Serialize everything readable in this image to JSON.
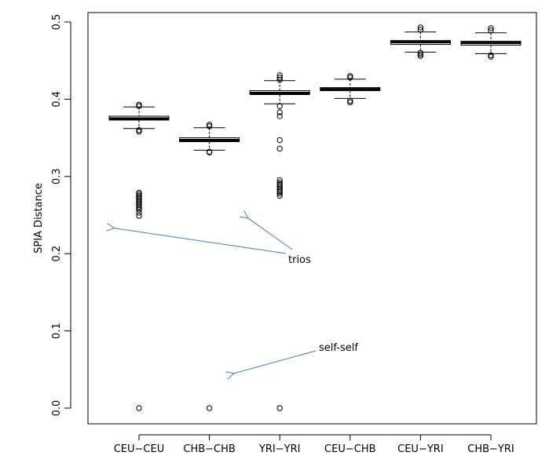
{
  "chart_data": {
    "type": "boxplot",
    "title": "",
    "xlabel": "",
    "ylabel": "SPIA Distance",
    "ylim": [
      -0.02,
      0.515
    ],
    "y_ticks": [
      0.0,
      0.1,
      0.2,
      0.3,
      0.4,
      0.5
    ],
    "y_tick_labels": [
      "0.0",
      "0.1",
      "0.2",
      "0.3",
      "0.4",
      "0.5"
    ],
    "categories": [
      "CEU−CEU",
      "CHB−CHB",
      "YRI−YRI",
      "CEU−CHB",
      "CEU−YRI",
      "CHB−YRI"
    ],
    "boxes": [
      {
        "q1": 0.373,
        "median": 0.375,
        "q3": 0.378,
        "whisker_low": 0.362,
        "whisker_high": 0.39,
        "outliers": [
          0.393,
          0.391,
          0.36,
          0.358,
          0.279,
          0.277,
          0.275,
          0.273,
          0.271,
          0.269,
          0.267,
          0.265,
          0.263,
          0.261,
          0.259,
          0.257,
          0.253,
          0.249,
          0.0
        ]
      },
      {
        "q1": 0.345,
        "median": 0.347,
        "q3": 0.35,
        "whisker_low": 0.334,
        "whisker_high": 0.363,
        "outliers": [
          0.367,
          0.365,
          0.332,
          0.331,
          0.0
        ]
      },
      {
        "q1": 0.406,
        "median": 0.408,
        "q3": 0.411,
        "whisker_low": 0.394,
        "whisker_high": 0.424,
        "outliers": [
          0.431,
          0.428,
          0.425,
          0.391,
          0.383,
          0.378,
          0.347,
          0.336,
          0.295,
          0.292,
          0.29,
          0.288,
          0.286,
          0.284,
          0.282,
          0.28,
          0.278,
          0.275,
          0.0
        ]
      },
      {
        "q1": 0.411,
        "median": 0.413,
        "q3": 0.415,
        "whisker_low": 0.401,
        "whisker_high": 0.426,
        "outliers": [
          0.43,
          0.428,
          0.398,
          0.396
        ]
      },
      {
        "q1": 0.471,
        "median": 0.474,
        "q3": 0.476,
        "whisker_low": 0.461,
        "whisker_high": 0.487,
        "outliers": [
          0.493,
          0.49,
          0.46,
          0.458,
          0.456
        ]
      },
      {
        "q1": 0.47,
        "median": 0.473,
        "q3": 0.475,
        "whisker_low": 0.459,
        "whisker_high": 0.486,
        "outliers": [
          0.492,
          0.489,
          0.457,
          0.455
        ]
      }
    ],
    "annotations": [
      {
        "text": "trios",
        "arrow_targets": [
          [
            0.65,
            0.233
          ],
          [
            2.55,
            0.246
          ]
        ]
      },
      {
        "text": "self-self",
        "arrow_targets": [
          [
            2.35,
            0.045
          ]
        ]
      }
    ],
    "colors": {
      "box": "#000000",
      "outlier": "#000000",
      "arrow": "#4a7ab5"
    }
  }
}
